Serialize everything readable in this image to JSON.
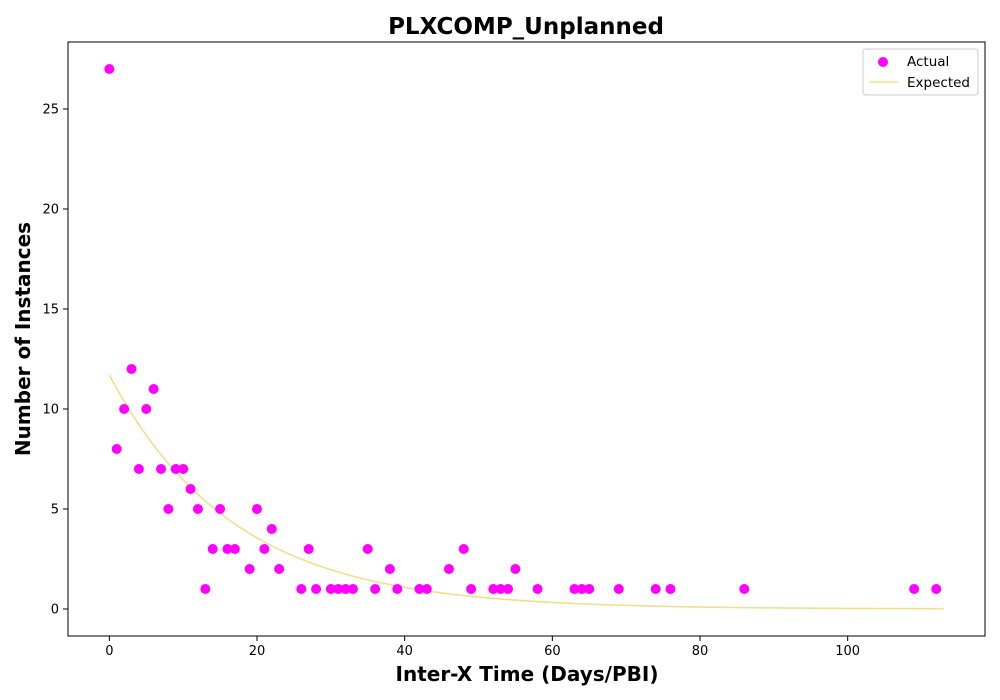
{
  "chart_data": {
    "type": "scatter",
    "title": "PLXCOMP_Unplanned",
    "xlabel": "Inter-X Time (Days/PBI)",
    "ylabel": "Number of Instances",
    "xlim": [
      -5.6,
      118.6
    ],
    "ylim": [
      -1.35,
      28.35
    ],
    "xticks": [
      0,
      20,
      40,
      60,
      80,
      100
    ],
    "yticks": [
      0,
      5,
      10,
      15,
      20,
      25
    ],
    "grid": false,
    "legend": {
      "placement": "upper right",
      "entries": [
        "Actual",
        "Expected"
      ]
    },
    "colors": {
      "actual": "#ff00ff",
      "expected": "#f0e08a"
    },
    "series": [
      {
        "name": "Actual",
        "kind": "scatter",
        "points": [
          [
            0,
            27
          ],
          [
            1,
            8
          ],
          [
            2,
            10
          ],
          [
            3,
            12
          ],
          [
            4,
            7
          ],
          [
            5,
            10
          ],
          [
            6,
            11
          ],
          [
            7,
            7
          ],
          [
            8,
            5
          ],
          [
            9,
            7
          ],
          [
            10,
            7
          ],
          [
            11,
            6
          ],
          [
            12,
            5
          ],
          [
            13,
            1
          ],
          [
            14,
            3
          ],
          [
            15,
            5
          ],
          [
            16,
            3
          ],
          [
            17,
            3
          ],
          [
            19,
            2
          ],
          [
            20,
            5
          ],
          [
            21,
            3
          ],
          [
            22,
            4
          ],
          [
            23,
            2
          ],
          [
            26,
            1
          ],
          [
            27,
            3
          ],
          [
            28,
            1
          ],
          [
            30,
            1
          ],
          [
            31,
            1
          ],
          [
            32,
            1
          ],
          [
            33,
            1
          ],
          [
            35,
            3
          ],
          [
            36,
            1
          ],
          [
            38,
            2
          ],
          [
            39,
            1
          ],
          [
            42,
            1
          ],
          [
            43,
            1
          ],
          [
            46,
            2
          ],
          [
            48,
            3
          ],
          [
            49,
            1
          ],
          [
            52,
            1
          ],
          [
            53,
            1
          ],
          [
            54,
            1
          ],
          [
            55,
            2
          ],
          [
            58,
            1
          ],
          [
            63,
            1
          ],
          [
            64,
            1
          ],
          [
            65,
            1
          ],
          [
            69,
            1
          ],
          [
            74,
            1
          ],
          [
            76,
            1
          ],
          [
            86,
            1
          ],
          [
            109,
            1
          ],
          [
            112,
            1
          ]
        ]
      },
      {
        "name": "Expected",
        "kind": "line",
        "model": {
          "form": "exponential",
          "a": 11.7,
          "b": 0.0595
        },
        "x_range": [
          0,
          113
        ]
      }
    ]
  }
}
